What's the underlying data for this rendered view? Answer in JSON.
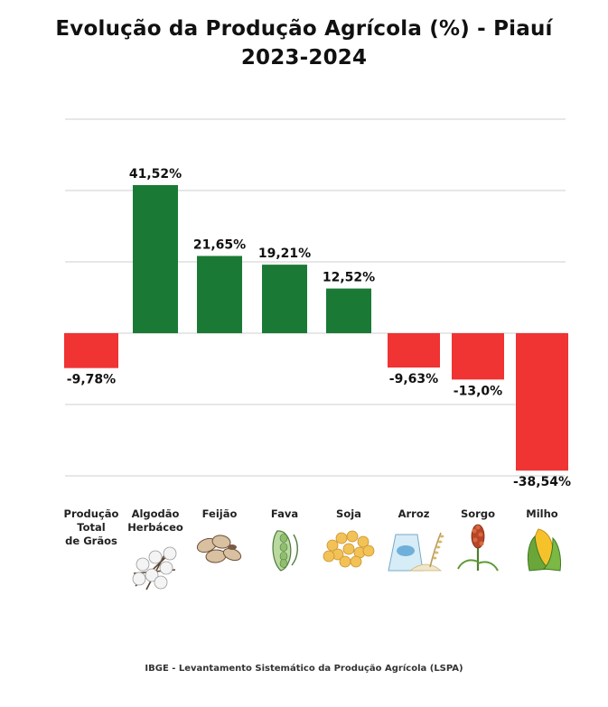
{
  "title_line1": "Evolução da Produção Agrícola (%) - Piauí",
  "title_line2": "2023-2024",
  "footer": "IBGE - Levantamento Sistemático da Produção Agrícola (LSPA)",
  "colors": {
    "positive": "#1a7a35",
    "negative": "#f03333",
    "grid": "#cfcfcf"
  },
  "chart_data": {
    "type": "bar",
    "title": "Evolução da Produção Agrícola (%) - Piauí 2023-2024",
    "categories": [
      {
        "lines": [
          "Produção",
          "Total",
          "de Grãos"
        ],
        "icon": ""
      },
      {
        "lines": [
          "Algodão",
          "Herbáceo"
        ],
        "icon": "cotton-icon"
      },
      {
        "lines": [
          "Feijão"
        ],
        "icon": "beans-icon"
      },
      {
        "lines": [
          "Fava"
        ],
        "icon": "fava-pod-icon"
      },
      {
        "lines": [
          "Soja"
        ],
        "icon": "soy-icon"
      },
      {
        "lines": [
          "Arroz"
        ],
        "icon": "rice-bag-icon"
      },
      {
        "lines": [
          "Sorgo"
        ],
        "icon": "sorghum-icon"
      },
      {
        "lines": [
          "Milho"
        ],
        "icon": "corn-icon"
      }
    ],
    "values": [
      -9.78,
      41.52,
      21.65,
      19.21,
      12.52,
      -9.63,
      -13.0,
      -38.54
    ],
    "value_labels": [
      "-9,78%",
      "41,52%",
      "21,65%",
      "19,21%",
      "12,52%",
      "-9,63%",
      "-13,0%",
      "-38,54%"
    ],
    "ylim": [
      -40,
      60
    ],
    "grid": true,
    "legend": "none"
  }
}
